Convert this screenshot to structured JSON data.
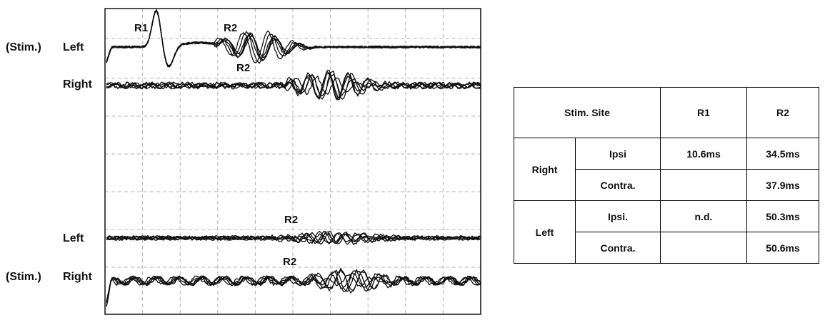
{
  "chart_data": {
    "type": "line",
    "title": "",
    "xlabel": "",
    "ylabel": "",
    "grid": true,
    "traces": [
      {
        "row_label": "Left",
        "stim_label": "(Stim.)",
        "peaks": [
          "R1",
          "R2"
        ]
      },
      {
        "row_label": "Right",
        "stim_label": "",
        "peaks": [
          "R2"
        ]
      },
      {
        "row_label": "Left",
        "stim_label": "",
        "peaks": [
          "R2"
        ]
      },
      {
        "row_label": "Right",
        "stim_label": "(Stim.)",
        "peaks": [
          "R2"
        ]
      }
    ]
  },
  "table": {
    "header": {
      "stim_site": "Stim. Site",
      "r1": "R1",
      "r2": "R2"
    },
    "groups": [
      {
        "site": "Right",
        "rows": [
          {
            "side": "Ipsi",
            "r1": "10.6ms",
            "r2": "34.5ms"
          },
          {
            "side": "Contra.",
            "r1": "",
            "r2": "37.9ms"
          }
        ]
      },
      {
        "site": "Left",
        "rows": [
          {
            "side": "Ipsi.",
            "r1": "n.d.",
            "r2": "50.3ms"
          },
          {
            "side": "Contra.",
            "r1": "",
            "r2": "50.6ms"
          }
        ]
      }
    ]
  }
}
